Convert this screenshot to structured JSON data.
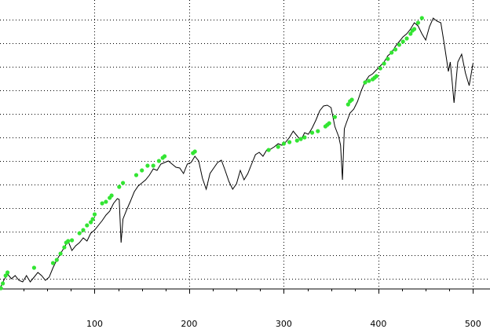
{
  "chart_data": {
    "type": "scatter",
    "title": "",
    "xlabel": "",
    "ylabel": "",
    "xlim": [
      0,
      518
    ],
    "ylim": [
      0,
      419
    ],
    "grid": true,
    "x_ticks": [
      100,
      200,
      300,
      400,
      500
    ],
    "x_tick_labels": [
      "100",
      "200",
      "300",
      "400",
      "500"
    ],
    "y_tick_values": [
      4,
      34,
      64,
      94,
      124,
      154,
      184,
      214,
      244,
      274,
      304,
      334,
      364,
      394
    ],
    "line_color": "#000000",
    "marker_color": "#33e533",
    "line_series": {
      "x": [
        0,
        4,
        8,
        12,
        16,
        20,
        24,
        28,
        32,
        36,
        40,
        44,
        48,
        52,
        56,
        60,
        64,
        68,
        72,
        76,
        80,
        84,
        88,
        92,
        96,
        100,
        104,
        108,
        112,
        116,
        120,
        124,
        126,
        128,
        130,
        134,
        138,
        142,
        146,
        150,
        154,
        158,
        162,
        166,
        170,
        174,
        178,
        182,
        186,
        190,
        194,
        198,
        202,
        206,
        210,
        214,
        218,
        222,
        226,
        230,
        234,
        238,
        242,
        246,
        250,
        254,
        258,
        262,
        266,
        270,
        274,
        278,
        282,
        286,
        290,
        294,
        298,
        302,
        306,
        310,
        314,
        318,
        322,
        326,
        330,
        334,
        338,
        342,
        346,
        350,
        354,
        358,
        360,
        362,
        364,
        366,
        370,
        374,
        378,
        382,
        386,
        390,
        394,
        398,
        402,
        406,
        410,
        414,
        418,
        422,
        426,
        430,
        434,
        438,
        442,
        446,
        450,
        454,
        458,
        462,
        466,
        470,
        474,
        476,
        478,
        480,
        484,
        488,
        492,
        496,
        500
      ],
      "y": [
        52,
        62,
        70,
        64,
        68,
        62,
        60,
        68,
        60,
        66,
        72,
        68,
        62,
        66,
        78,
        88,
        96,
        104,
        112,
        100,
        106,
        110,
        116,
        112,
        122,
        126,
        132,
        138,
        145,
        150,
        160,
        166,
        165,
        110,
        140,
        152,
        163,
        175,
        182,
        186,
        190,
        196,
        204,
        202,
        210,
        212,
        214,
        210,
        206,
        205,
        198,
        210,
        212,
        220,
        214,
        192,
        178,
        198,
        205,
        212,
        215,
        202,
        188,
        178,
        185,
        202,
        190,
        198,
        210,
        222,
        225,
        220,
        228,
        229,
        232,
        236,
        234,
        238,
        244,
        252,
        246,
        240,
        250,
        248,
        256,
        266,
        278,
        284,
        285,
        282,
        258,
        245,
        234,
        190,
        255,
        262,
        275,
        280,
        290,
        304,
        315,
        322,
        325,
        330,
        335,
        340,
        348,
        352,
        360,
        366,
        372,
        376,
        382,
        390,
        386,
        376,
        368,
        385,
        396,
        392,
        390,
        360,
        328,
        340,
        315,
        288,
        340,
        350,
        326,
        310,
        338
      ]
    },
    "green_points": {
      "x": [
        1,
        3,
        6,
        8,
        36,
        56,
        60,
        64,
        68,
        70,
        72,
        76,
        84,
        88,
        92,
        96,
        98,
        100,
        108,
        112,
        116,
        118,
        126,
        130,
        144,
        150,
        156,
        162,
        168,
        172,
        174,
        204,
        206,
        284,
        294,
        300,
        306,
        314,
        318,
        322,
        330,
        336,
        344,
        346,
        348,
        354,
        368,
        370,
        372,
        386,
        390,
        394,
        396,
        398,
        402,
        406,
        410,
        414,
        418,
        422,
        426,
        430,
        434,
        436,
        438,
        442,
        446
      ],
      "y": [
        52,
        58,
        68,
        72,
        78,
        84,
        88,
        96,
        104,
        110,
        112,
        113,
        122,
        126,
        132,
        136,
        140,
        146,
        160,
        162,
        167,
        170,
        181,
        186,
        196,
        202,
        208,
        208,
        214,
        218,
        220,
        224,
        226,
        228,
        232,
        236,
        238,
        240,
        242,
        244,
        250,
        252,
        258,
        260,
        262,
        270,
        286,
        290,
        292,
        314,
        316,
        318,
        320,
        322,
        332,
        338,
        344,
        352,
        356,
        362,
        366,
        370,
        376,
        380,
        382,
        390,
        396
      ]
    }
  }
}
